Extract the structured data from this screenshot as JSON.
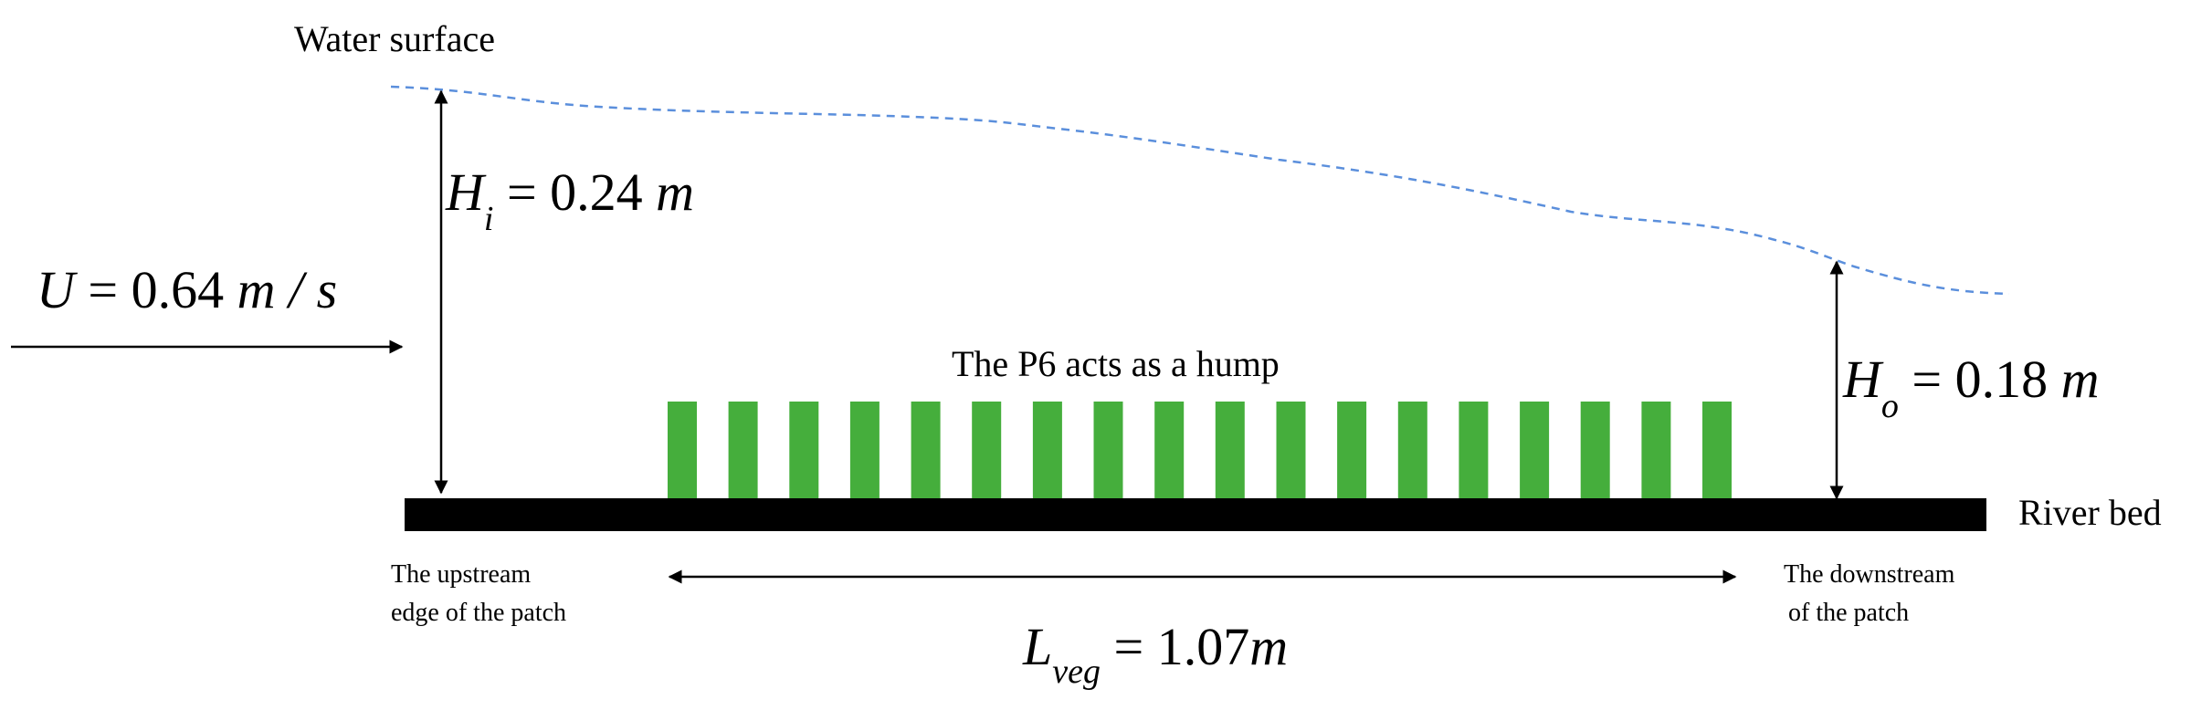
{
  "labels": {
    "water_surface": "Water surface",
    "hi_var": "H",
    "hi_sub": "i",
    "hi_rest": " = 0.24 ",
    "hi_unit": "m",
    "u_var": "U",
    "u_rest": " = 0.64 ",
    "u_unit": "m / s",
    "ho_var": "H",
    "ho_sub": "o",
    "ho_rest": " = 0.18 ",
    "ho_unit": "m",
    "hump": "The P6 acts as a hump",
    "river_bed": "River bed",
    "upstream_line1": "The upstream",
    "upstream_line2": "edge of the patch",
    "downstream_line1": "The downstream",
    "downstream_line2": "of the patch",
    "lveg_var": "L",
    "lveg_sub": "veg",
    "lveg_rest": " = 1.07",
    "lveg_unit": "m"
  },
  "colors": {
    "vegetation": "#45ae3c",
    "water_line": "#5b8fdc",
    "bed": "#000000"
  },
  "vegetation_stem_count": 18
}
